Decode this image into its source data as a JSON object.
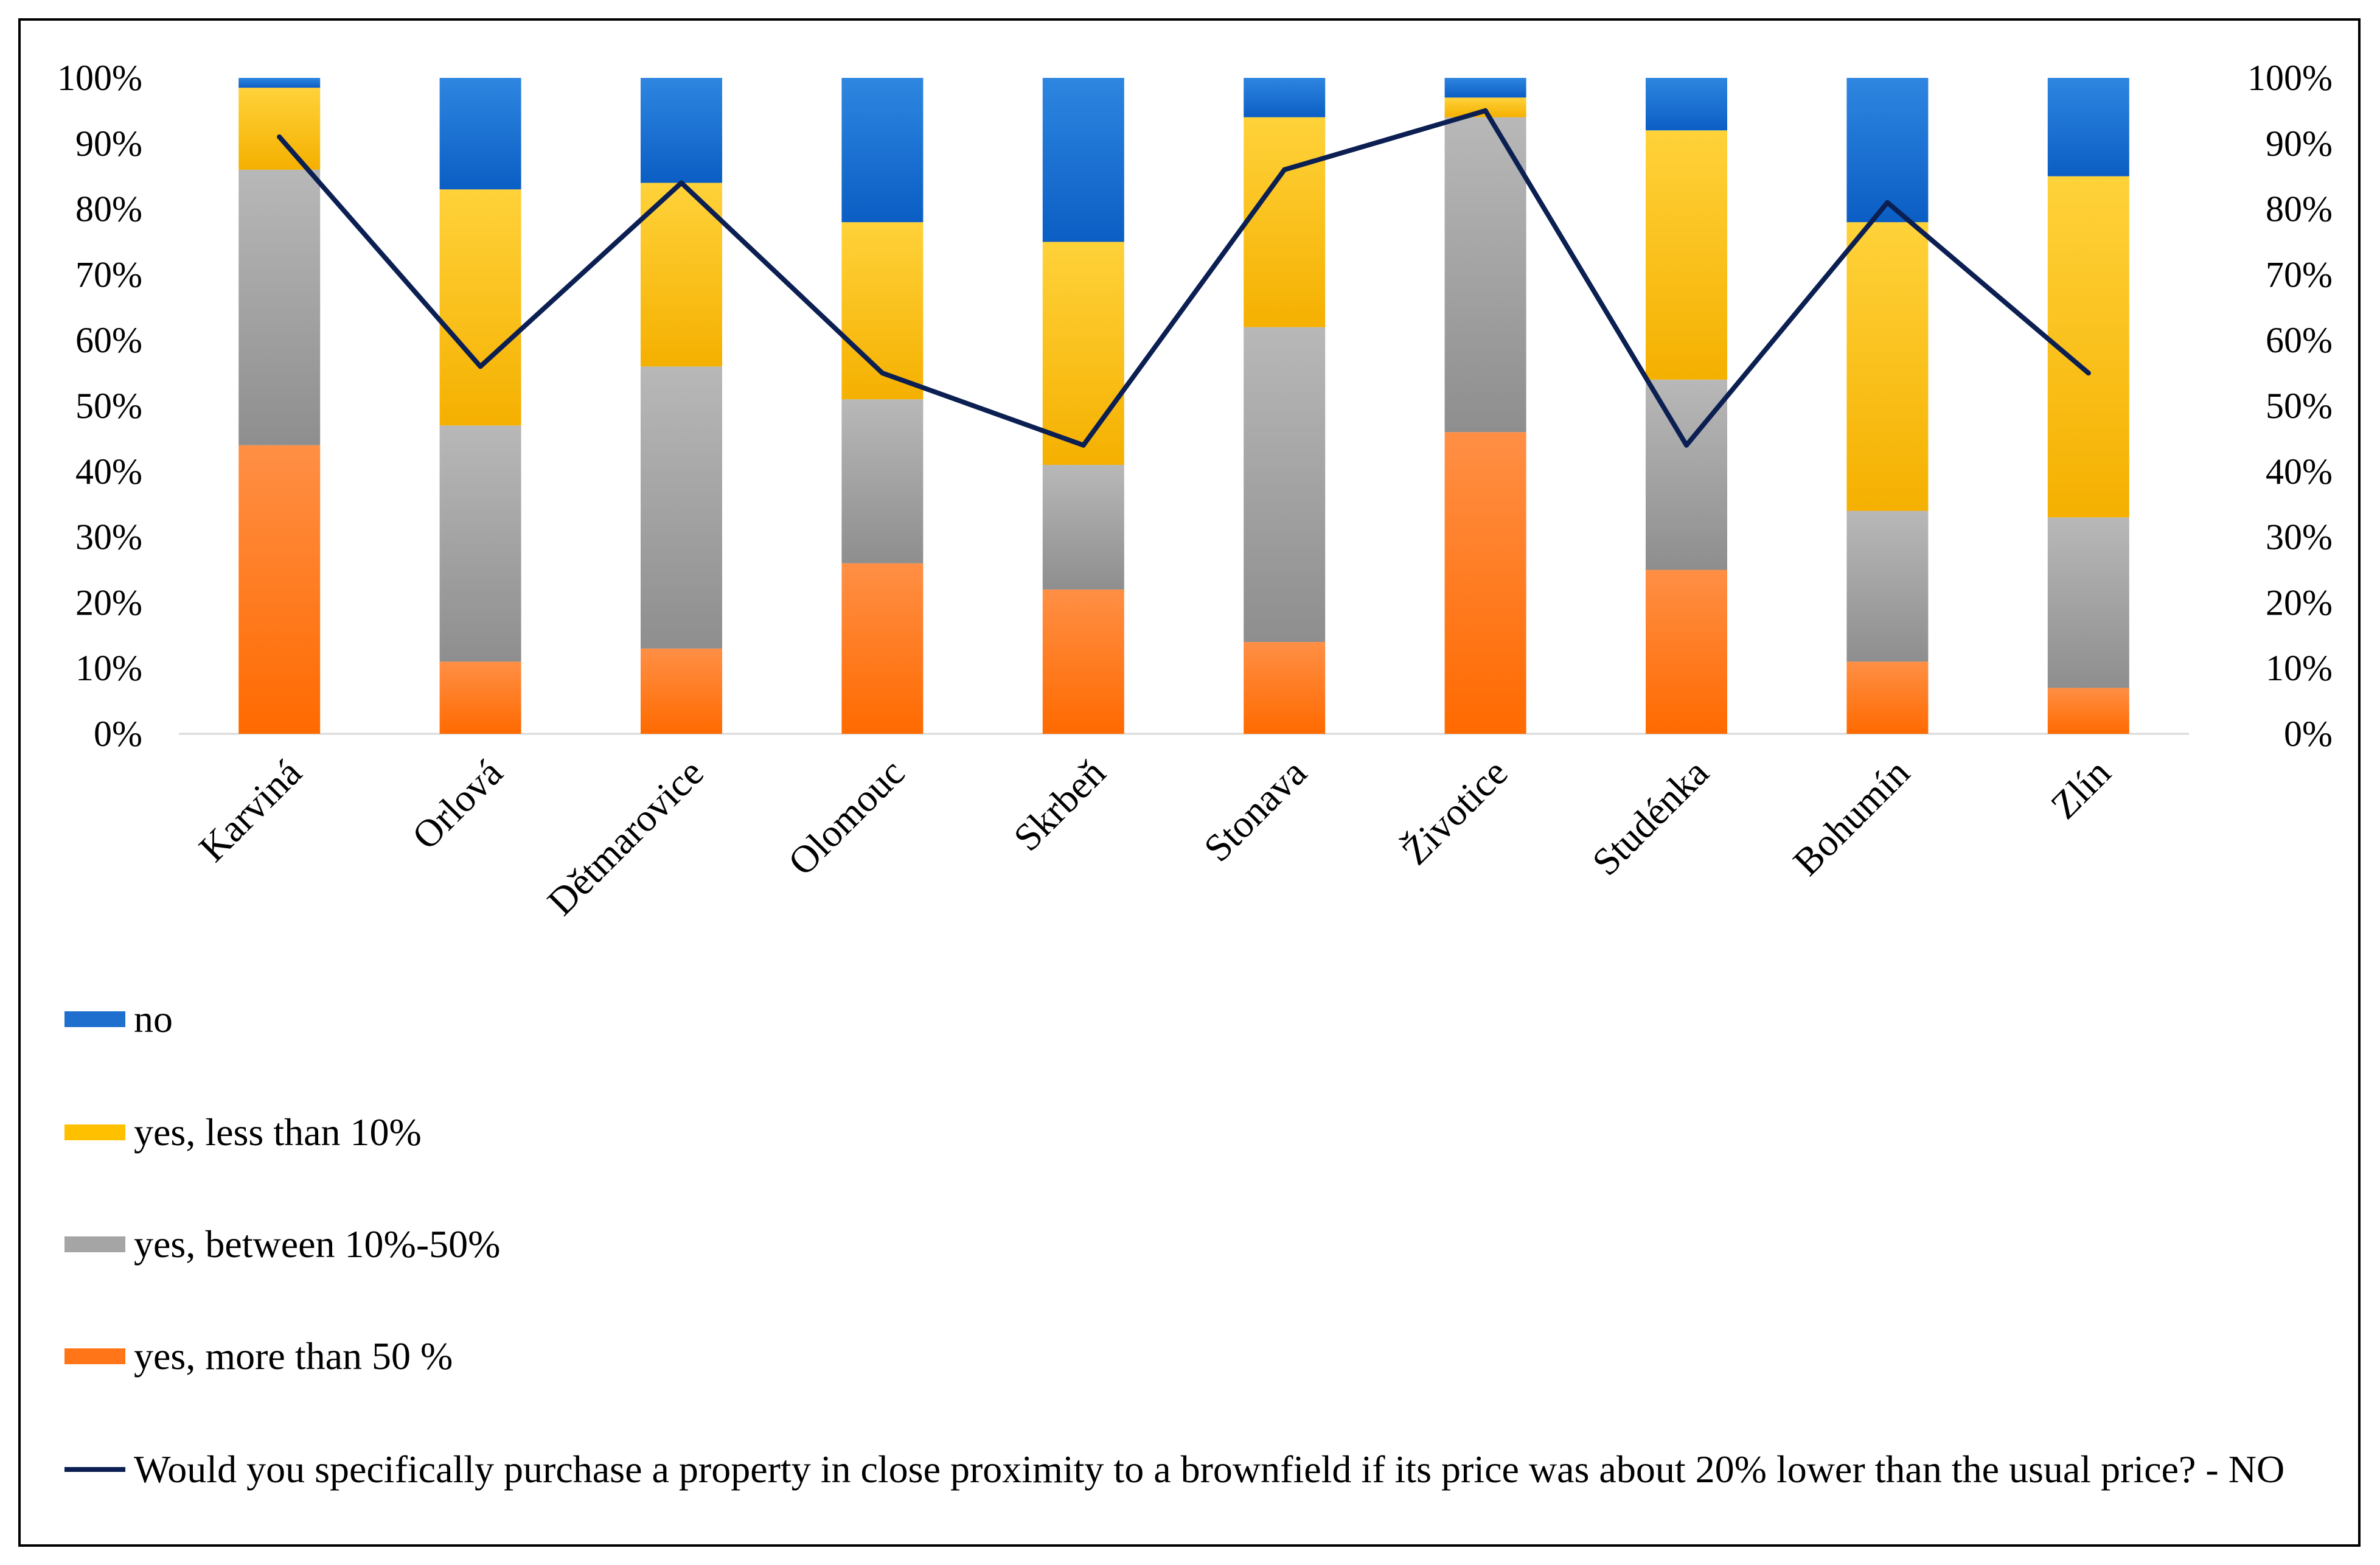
{
  "chart_data": {
    "type": "bar",
    "stacked": true,
    "categories": [
      "Karviná",
      "Orlová",
      "Dětmarovice",
      "Olomouc",
      "Skrbeň",
      "Stonava",
      "Životice",
      "Studénka",
      "Bohumín",
      "Zlín"
    ],
    "series": [
      {
        "name": "yes, more than 50 %",
        "color": "#FF7518",
        "values": [
          44,
          11,
          13,
          26,
          22,
          14,
          46,
          25,
          11,
          7
        ]
      },
      {
        "name": "yes, between 10%-50%",
        "color": "#A5A5A5",
        "values": [
          42,
          36,
          43,
          25,
          19,
          48,
          48,
          29,
          23,
          26
        ]
      },
      {
        "name": "yes, less than 10%",
        "color": "#FFC000",
        "values": [
          12.5,
          36,
          28,
          27,
          34,
          32,
          3,
          38,
          44,
          52
        ]
      },
      {
        "name": "no",
        "color": "#1F6FCF",
        "values": [
          1.5,
          17,
          16,
          22,
          25,
          6,
          3,
          8,
          22,
          15
        ]
      }
    ],
    "line_series": {
      "name": "Would you specifically purchase a property in close proximity to a brownfield if its price was about 20% lower than the usual price? - NO",
      "color": "#0B1F52",
      "values": [
        91,
        56,
        84,
        55,
        44,
        86,
        95,
        44,
        81,
        55
      ]
    },
    "y_ticks": [
      "0%",
      "10%",
      "20%",
      "30%",
      "40%",
      "50%",
      "60%",
      "70%",
      "80%",
      "90%",
      "100%"
    ],
    "ylim": [
      0,
      100
    ],
    "y2lim": [
      0,
      100
    ],
    "legend_position": "bottom",
    "legend_order": [
      "no",
      "yes, less than 10%",
      "yes, between 10%-50%",
      "yes, more than 50 %"
    ]
  }
}
